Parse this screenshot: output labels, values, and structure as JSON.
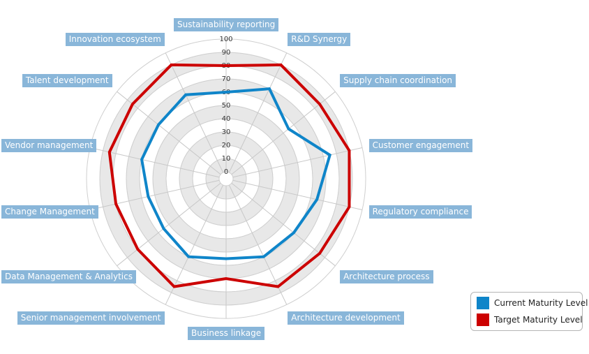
{
  "chart_data": {
    "type": "radar",
    "categories": [
      "Business linkage",
      "Senior management involvement",
      "Data Management & Analytics",
      "Change Management",
      "Vendor management",
      "Talent development",
      "Innovation ecosystem",
      "Sustainability reporting",
      "R&D Synergy",
      "Supply chain coordination",
      "Customer engagement",
      "Regulatory compliance",
      "Architecture process",
      "Architecture development"
    ],
    "ticks": [
      "0",
      "10",
      "20",
      "30",
      "40",
      "50",
      "60",
      "70",
      "80",
      "90",
      "100"
    ],
    "rlim": [
      0,
      100
    ],
    "grid": true,
    "legend_position": "bottom-right",
    "series": [
      {
        "name": "Current Maturity Level",
        "color": "#0f85c9",
        "values": [
          55,
          60,
          55,
          55,
          60,
          60,
          65,
          60,
          70,
          55,
          75,
          65,
          60,
          60
        ]
      },
      {
        "name": "Target Maturity Level",
        "color": "#cc0000",
        "values": [
          70,
          85,
          80,
          80,
          85,
          85,
          90,
          80,
          90,
          85,
          90,
          90,
          85,
          85
        ]
      }
    ]
  }
}
